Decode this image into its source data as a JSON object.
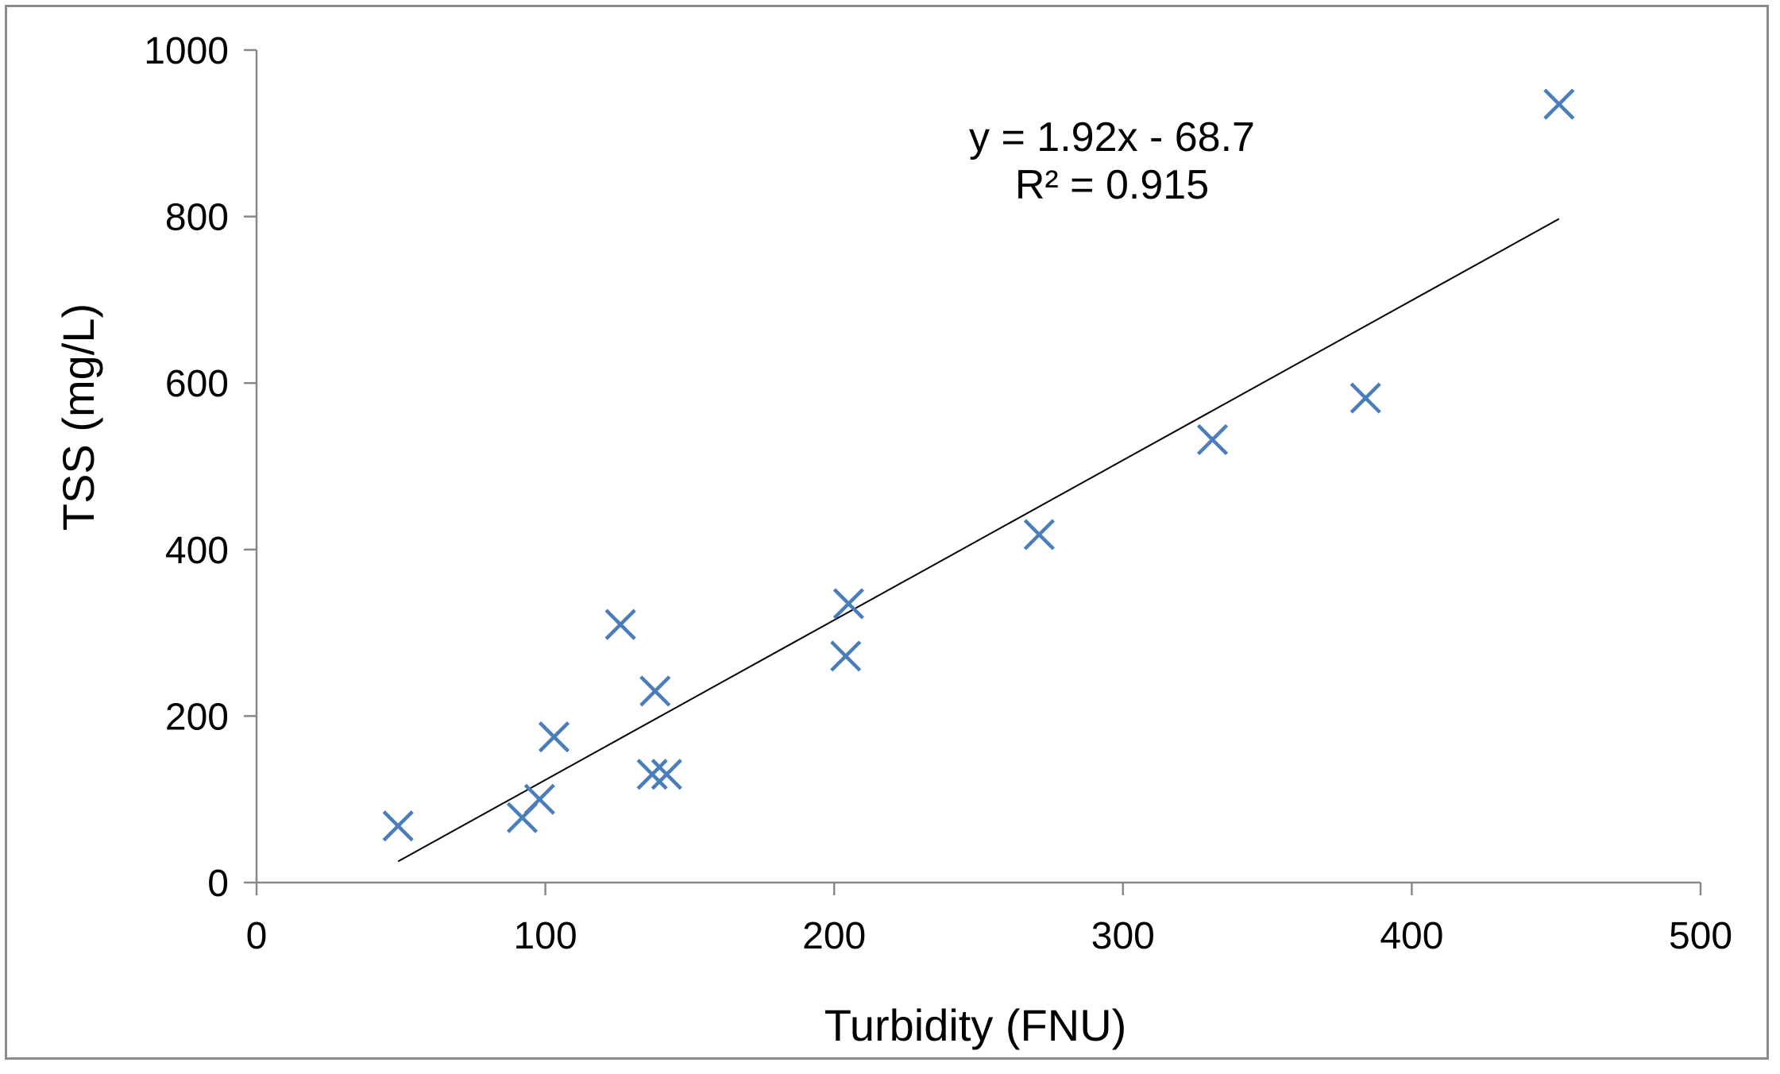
{
  "chart_data": {
    "type": "scatter",
    "title": "",
    "xlabel": "Turbidity (FNU)",
    "ylabel": "TSS (mg/L)",
    "xlim": [
      0,
      500
    ],
    "ylim": [
      0,
      1000
    ],
    "x_ticks": [
      "0",
      "100",
      "200",
      "300",
      "400",
      "500"
    ],
    "y_ticks": [
      "0",
      "200",
      "400",
      "600",
      "800",
      "1000"
    ],
    "grid": false,
    "legend": "none",
    "marker": "x",
    "series": [
      {
        "points": [
          {
            "x": 49,
            "y": 68
          },
          {
            "x": 92,
            "y": 78
          },
          {
            "x": 98,
            "y": 100
          },
          {
            "x": 103,
            "y": 175
          },
          {
            "x": 126,
            "y": 310
          },
          {
            "x": 137,
            "y": 130
          },
          {
            "x": 138,
            "y": 230
          },
          {
            "x": 142,
            "y": 130
          },
          {
            "x": 204,
            "y": 272
          },
          {
            "x": 205,
            "y": 335
          },
          {
            "x": 271,
            "y": 418
          },
          {
            "x": 331,
            "y": 532
          },
          {
            "x": 384,
            "y": 582
          },
          {
            "x": 451,
            "y": 935
          }
        ]
      }
    ],
    "trendline": {
      "slope": 1.92,
      "intercept": -68.7,
      "x_range": [
        49,
        451
      ],
      "equation": "y = 1.92x - 68.7",
      "r_squared": "R² = 0.915"
    },
    "colors": {
      "marker": "#4a7ebb",
      "trendline": "#000000",
      "axis": "#888888",
      "frame": "#8c8c8c"
    }
  }
}
